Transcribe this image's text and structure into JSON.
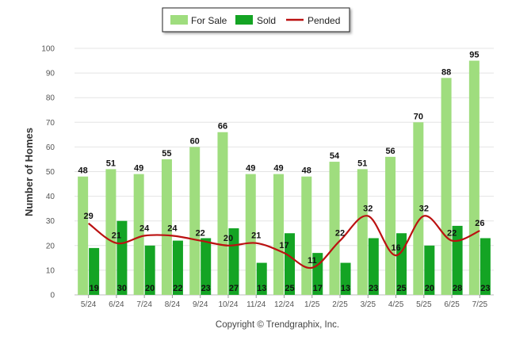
{
  "colors": {
    "for_sale": "#9fdd7e",
    "sold": "#14a424",
    "pended": "#bb1111",
    "grid": "#e4e4e4"
  },
  "legend": {
    "for_sale": "For Sale",
    "sold": "Sold",
    "pended": "Pended"
  },
  "credit": "Copyright © Trendgraphix, Inc.",
  "chart_data": {
    "type": "bar",
    "ylabel": "Number of Homes",
    "xlabel": "",
    "ylim": [
      0,
      100
    ],
    "yticks": [
      0,
      10,
      20,
      30,
      40,
      50,
      60,
      70,
      80,
      90,
      100
    ],
    "categories": [
      "5/24",
      "6/24",
      "7/24",
      "8/24",
      "9/24",
      "10/24",
      "11/24",
      "12/24",
      "1/25",
      "2/25",
      "3/25",
      "4/25",
      "5/25",
      "6/25",
      "7/25"
    ],
    "series": [
      {
        "name": "For Sale",
        "type": "bar",
        "values": [
          48,
          51,
          49,
          55,
          60,
          66,
          49,
          49,
          48,
          54,
          51,
          56,
          70,
          88,
          95
        ]
      },
      {
        "name": "Sold",
        "type": "bar",
        "values": [
          19,
          30,
          20,
          22,
          23,
          27,
          13,
          25,
          17,
          13,
          23,
          25,
          20,
          28,
          23
        ]
      },
      {
        "name": "Pended",
        "type": "line",
        "values": [
          29,
          21,
          24,
          24,
          22,
          20,
          21,
          17,
          11,
          22,
          32,
          16,
          32,
          22,
          26
        ]
      }
    ],
    "legend_position": "top-center",
    "grid": true
  }
}
